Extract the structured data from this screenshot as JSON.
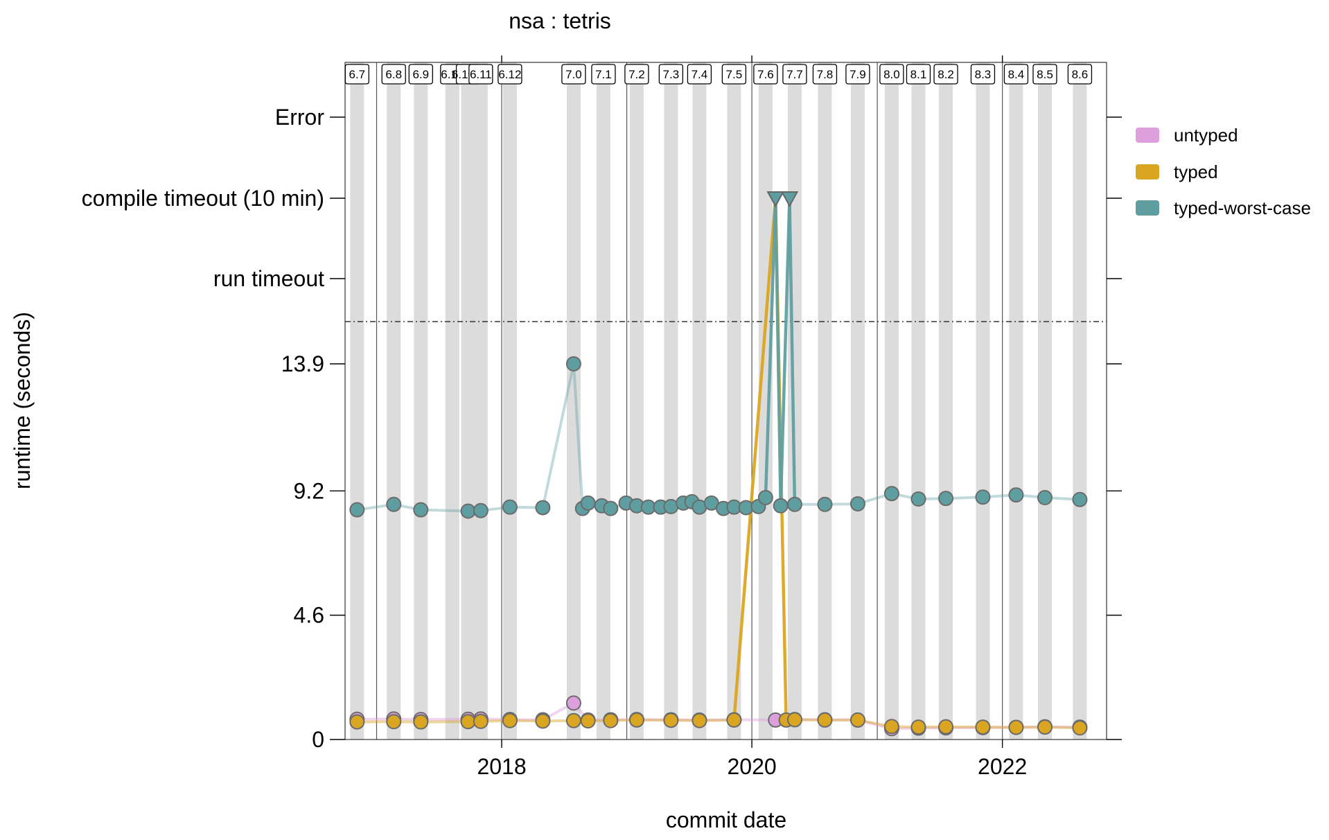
{
  "chart_data": {
    "type": "scatter",
    "title": "nsa : tetris",
    "xlabel": "commit date",
    "ylabel": "runtime (seconds)",
    "xlim": [
      "2016-10-01",
      "2022-11-01"
    ],
    "x_ticks": [
      {
        "date": "2018-01-01",
        "label": "2018"
      },
      {
        "date": "2020-01-01",
        "label": "2020"
      },
      {
        "date": "2022-01-01",
        "label": "2022"
      }
    ],
    "y_numeric_range": [
      0,
      17.5
    ],
    "y_ticks": [
      {
        "value": 0,
        "label": "0"
      },
      {
        "value": 4.6,
        "label": "4.6"
      },
      {
        "value": 9.2,
        "label": "9.2"
      },
      {
        "value": 13.9,
        "label": "13.9"
      }
    ],
    "y_categories": [
      "run timeout",
      "compile timeout (10 min)",
      "Error"
    ],
    "threshold_line": "dash-dot",
    "releases": [
      {
        "label": "6.7",
        "date": "2016-11-05"
      },
      {
        "label": "6.8",
        "date": "2017-02-20"
      },
      {
        "label": "6.9",
        "date": "2017-05-10"
      },
      {
        "label": "6.10",
        "date": "2017-08-10"
      },
      {
        "label": "6.10.1",
        "date": "2017-09-25"
      },
      {
        "label": "6.11",
        "date": "2017-11-01"
      },
      {
        "label": "6.12",
        "date": "2018-01-25"
      },
      {
        "label": "7.0",
        "date": "2018-07-30"
      },
      {
        "label": "7.1",
        "date": "2018-10-25"
      },
      {
        "label": "7.2",
        "date": "2019-01-30"
      },
      {
        "label": "7.3",
        "date": "2019-05-10"
      },
      {
        "label": "7.4",
        "date": "2019-08-01"
      },
      {
        "label": "7.5",
        "date": "2019-11-10"
      },
      {
        "label": "7.6",
        "date": "2020-02-10"
      },
      {
        "label": "7.7",
        "date": "2020-05-05"
      },
      {
        "label": "7.8",
        "date": "2020-08-01"
      },
      {
        "label": "7.9",
        "date": "2020-11-05"
      },
      {
        "label": "8.0",
        "date": "2021-02-12"
      },
      {
        "label": "8.1",
        "date": "2021-05-01"
      },
      {
        "label": "8.2",
        "date": "2021-07-20"
      },
      {
        "label": "8.3",
        "date": "2021-11-05"
      },
      {
        "label": "8.4",
        "date": "2022-02-10"
      },
      {
        "label": "8.5",
        "date": "2022-05-05"
      },
      {
        "label": "8.6",
        "date": "2022-08-15"
      }
    ],
    "series": [
      {
        "name": "untyped",
        "color": "#DDA0DD",
        "points": [
          [
            "2016-11-05",
            0.75
          ],
          [
            "2017-02-20",
            0.76
          ],
          [
            "2017-05-10",
            0.74
          ],
          [
            "2017-09-25",
            0.75
          ],
          [
            "2017-11-01",
            0.76
          ],
          [
            "2018-01-25",
            0.74
          ],
          [
            "2018-05-01",
            0.73
          ],
          [
            "2018-07-30",
            1.35
          ],
          [
            "2018-09-10",
            0.72
          ],
          [
            "2018-11-15",
            0.73
          ],
          [
            "2019-01-30",
            0.74
          ],
          [
            "2019-05-10",
            0.73
          ],
          [
            "2019-08-01",
            0.72
          ],
          [
            "2019-11-10",
            0.73
          ],
          [
            "2020-03-10",
            0.72
          ],
          [
            "2020-05-05",
            0.74
          ],
          [
            "2020-08-01",
            0.73
          ],
          [
            "2020-11-05",
            0.72
          ],
          [
            "2021-02-12",
            0.4
          ],
          [
            "2021-05-01",
            0.42
          ],
          [
            "2021-07-20",
            0.43
          ],
          [
            "2021-11-05",
            0.44
          ],
          [
            "2022-02-10",
            0.45
          ],
          [
            "2022-05-05",
            0.47
          ],
          [
            "2022-08-15",
            0.46
          ]
        ]
      },
      {
        "name": "typed",
        "color": "#DAA520",
        "points": [
          [
            "2016-11-05",
            0.65
          ],
          [
            "2017-02-20",
            0.66
          ],
          [
            "2017-05-10",
            0.65
          ],
          [
            "2017-09-25",
            0.66
          ],
          [
            "2017-11-01",
            0.67
          ],
          [
            "2018-01-25",
            0.7
          ],
          [
            "2018-05-01",
            0.68
          ],
          [
            "2018-07-30",
            0.7
          ],
          [
            "2018-09-10",
            0.69
          ],
          [
            "2018-11-15",
            0.7
          ],
          [
            "2019-01-30",
            0.72
          ],
          [
            "2019-05-10",
            0.71
          ],
          [
            "2019-08-01",
            0.7
          ],
          [
            "2019-11-10",
            0.72
          ],
          [
            "2020-03-10",
            "compile timeout (10 min)"
          ],
          [
            "2020-04-10",
            0.72
          ],
          [
            "2020-05-05",
            0.73
          ],
          [
            "2020-08-01",
            0.72
          ],
          [
            "2020-11-05",
            0.72
          ],
          [
            "2021-02-12",
            0.48
          ],
          [
            "2021-05-01",
            0.46
          ],
          [
            "2021-07-20",
            0.47
          ],
          [
            "2021-11-05",
            0.46
          ],
          [
            "2022-02-10",
            0.45
          ],
          [
            "2022-05-05",
            0.46
          ],
          [
            "2022-08-15",
            0.43
          ]
        ]
      },
      {
        "name": "typed-worst-case",
        "color": "#5F9EA0",
        "points": [
          [
            "2016-11-05",
            8.5
          ],
          [
            "2017-02-20",
            8.7
          ],
          [
            "2017-05-10",
            8.5
          ],
          [
            "2017-09-25",
            8.45
          ],
          [
            "2017-11-01",
            8.47
          ],
          [
            "2018-01-25",
            8.6
          ],
          [
            "2018-05-01",
            8.58
          ],
          [
            "2018-07-30",
            13.9
          ],
          [
            "2018-08-25",
            8.55
          ],
          [
            "2018-09-10",
            8.75
          ],
          [
            "2018-10-20",
            8.65
          ],
          [
            "2018-11-15",
            8.55
          ],
          [
            "2018-12-30",
            8.75
          ],
          [
            "2019-01-30",
            8.65
          ],
          [
            "2019-03-05",
            8.6
          ],
          [
            "2019-04-10",
            8.6
          ],
          [
            "2019-05-10",
            8.62
          ],
          [
            "2019-06-15",
            8.75
          ],
          [
            "2019-07-10",
            8.8
          ],
          [
            "2019-08-01",
            8.6
          ],
          [
            "2019-09-05",
            8.75
          ],
          [
            "2019-10-10",
            8.55
          ],
          [
            "2019-11-10",
            8.6
          ],
          [
            "2019-12-15",
            8.58
          ],
          [
            "2020-01-20",
            8.62
          ],
          [
            "2020-02-10",
            8.95
          ],
          [
            "2020-03-10",
            "compile timeout (10 min)"
          ],
          [
            "2020-03-25",
            8.65
          ],
          [
            "2020-04-20",
            "compile timeout (10 min)"
          ],
          [
            "2020-05-05",
            8.7
          ],
          [
            "2020-08-01",
            8.7
          ],
          [
            "2020-11-05",
            8.72
          ],
          [
            "2021-02-12",
            9.1
          ],
          [
            "2021-05-01",
            8.9
          ],
          [
            "2021-07-20",
            8.92
          ],
          [
            "2021-11-05",
            8.97
          ],
          [
            "2022-02-10",
            9.05
          ],
          [
            "2022-05-05",
            8.95
          ],
          [
            "2022-08-15",
            8.88
          ]
        ]
      }
    ],
    "legend": {
      "position": "right",
      "entries": [
        "untyped",
        "typed",
        "typed-worst-case"
      ]
    }
  }
}
